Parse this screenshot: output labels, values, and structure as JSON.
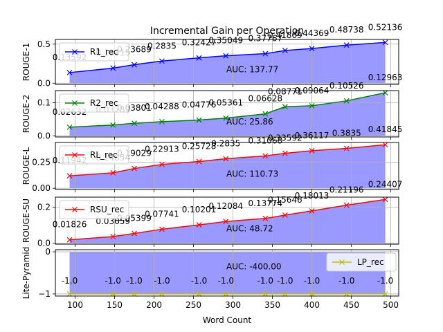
{
  "chart_data": [
    {
      "type": "line",
      "title": "Incremental Gain per Operation",
      "ylabel": "ROUGE-1",
      "xlabel": "",
      "x": [
        93,
        148,
        175,
        210,
        257,
        291,
        341,
        366,
        400,
        444,
        493
      ],
      "series": [
        {
          "name": "R1_rec",
          "color": "#0000ff",
          "values": [
            0.13592,
            0.19315,
            0.23689,
            0.2835,
            0.32427,
            0.35049,
            0.37767,
            0.41869,
            0.44369,
            0.48738,
            0.52136
          ]
        }
      ],
      "point_labels": [
        "0.13592",
        "0.19315",
        "0.23689",
        "0.2835",
        "0.32427",
        "0.35049",
        "0.37767",
        "0.41869",
        "0.44369",
        "0.48738",
        "0.52136"
      ],
      "auc_label": "AUC: 137.77",
      "yticks": [
        "0.0",
        "0.5"
      ],
      "ylim": [
        -0.015,
        0.56
      ],
      "legend_position": "upper left",
      "grid": true
    },
    {
      "type": "line",
      "ylabel": "ROUGE-2",
      "x": [
        93,
        148,
        175,
        210,
        257,
        291,
        341,
        366,
        400,
        444,
        493
      ],
      "series": [
        {
          "name": "R2_rec",
          "color": "#008000",
          "values": [
            0.02632,
            0.03289,
            0.03801,
            0.04288,
            0.04776,
            0.05361,
            0.06628,
            0.08771,
            0.09064,
            0.10526,
            0.12963
          ]
        }
      ],
      "point_labels": [
        "0.02632",
        "0.03289",
        "0.03801",
        "0.04288",
        "0.04776",
        "0.05361",
        "0.06628",
        "0.08771",
        "0.09064",
        "0.10526",
        "0.12963"
      ],
      "auc_label": "AUC: 25.86",
      "yticks": [
        "0.0",
        "0.1"
      ],
      "ylim": [
        -0.003,
        0.136
      ],
      "legend_position": "upper left",
      "grid": true
    },
    {
      "type": "line",
      "ylabel": "ROUGE-L",
      "x": [
        93,
        148,
        175,
        210,
        257,
        291,
        341,
        366,
        400,
        444,
        493
      ],
      "series": [
        {
          "name": "RL_rec",
          "color": "#ff0000",
          "values": [
            0.11942,
            0.14854,
            0.19029,
            0.22913,
            0.25728,
            0.2835,
            0.31068,
            0.33592,
            0.36117,
            0.3835,
            0.41845
          ]
        }
      ],
      "point_labels": [
        "0.11942",
        "0.14854",
        "0.19029",
        "0.22913",
        "0.25728",
        "0.2835",
        "0.31068",
        "0.33592",
        "0.36117",
        "0.3835",
        "0.41845"
      ],
      "auc_label": "AUC: 110.73",
      "yticks": [
        "0.00",
        "0.25"
      ],
      "ylim": [
        -0.012,
        0.44
      ],
      "legend_position": "upper left",
      "grid": true
    },
    {
      "type": "line",
      "ylabel": "ROUGE-SU",
      "x": [
        93,
        148,
        175,
        210,
        257,
        291,
        341,
        366,
        400,
        444,
        493
      ],
      "series": [
        {
          "name": "RSU_rec",
          "color": "#ff0000",
          "values": [
            0.01826,
            0.03659,
            0.05399,
            0.07741,
            0.10201,
            0.12084,
            0.13774,
            0.15646,
            0.18013,
            0.21196,
            0.24407
          ]
        }
      ],
      "point_labels": [
        "0.01826",
        "0.03659",
        "0.05399",
        "0.07741",
        "0.10201",
        "0.12084",
        "0.13774",
        "0.15646",
        "0.18013",
        "0.21196",
        "0.24407"
      ],
      "auc_label": "AUC: 48.72",
      "yticks": [
        "0.0",
        "0.2"
      ],
      "ylim": [
        -0.006,
        0.257
      ],
      "legend_position": "upper left",
      "grid": true
    },
    {
      "type": "line",
      "ylabel": "Lite-Pyramid",
      "xlabel": "Word Count",
      "x": [
        93,
        148,
        175,
        210,
        257,
        291,
        341,
        366,
        400,
        444,
        493
      ],
      "series": [
        {
          "name": "LP_rec",
          "color": "#bfbf00",
          "values": [
            -1.0,
            -1.0,
            -1.0,
            -1.0,
            -1.0,
            -1.0,
            -1.0,
            -1.0,
            -1.0,
            -1.0,
            -1.0
          ]
        }
      ],
      "point_labels": [
        "-1.0",
        "-1.0",
        "-1.0",
        "-1.0",
        "-1.0",
        "-1.0",
        "-1.0",
        "-1.0",
        "-1.0",
        "-1.0",
        "-1.0"
      ],
      "auc_label": "AUC: -400.00",
      "yticks": [
        "0",
        "−1"
      ],
      "ylim": [
        -1.05,
        0.05
      ],
      "xticks": [
        "100",
        "150",
        "200",
        "250",
        "300",
        "350",
        "400",
        "450",
        "500"
      ],
      "xlim": [
        75,
        510
      ],
      "legend_position": "upper right",
      "grid": true
    }
  ]
}
